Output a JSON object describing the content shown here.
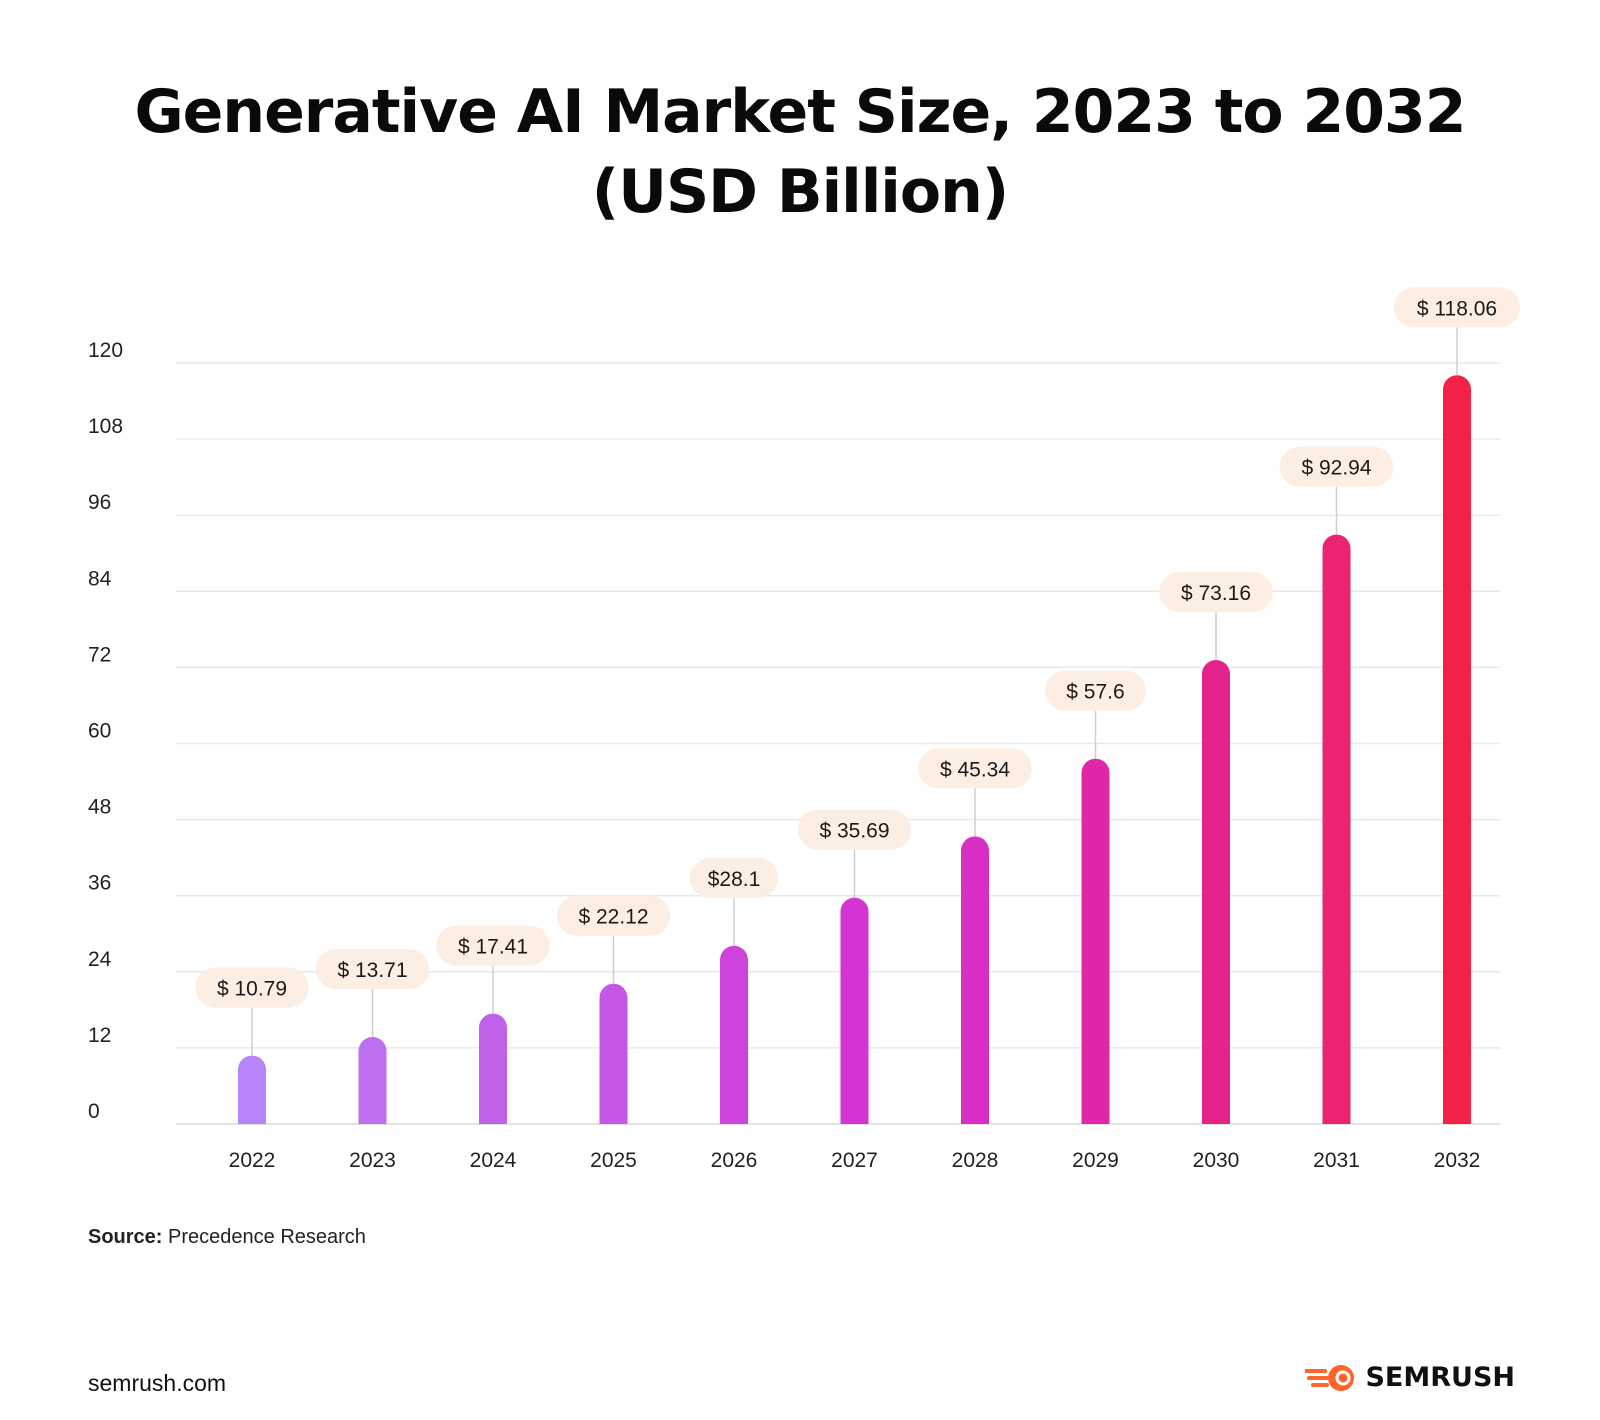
{
  "title": {
    "line1": "Generative AI Market Size, 2023 to 2032",
    "line2": "(USD Billion)"
  },
  "chart_data": {
    "type": "bar",
    "title": "Generative AI Market Size, 2023 to 2032 (USD Billion)",
    "xlabel": "",
    "ylabel": "",
    "ylim": [
      0,
      120
    ],
    "yticks": [
      0,
      12,
      24,
      36,
      48,
      60,
      72,
      84,
      96,
      108,
      120
    ],
    "grid": true,
    "categories": [
      "2022",
      "2023",
      "2024",
      "2025",
      "2026",
      "2027",
      "2028",
      "2029",
      "2030",
      "2031",
      "2032"
    ],
    "values": [
      10.79,
      13.71,
      17.41,
      22.12,
      28.1,
      35.69,
      45.34,
      57.6,
      73.16,
      92.94,
      118.06
    ],
    "data_labels": [
      "$ 10.79",
      "$ 13.71",
      "$ 17.41",
      "$ 22.12",
      "$28.1",
      "$ 35.69",
      "$ 45.34",
      "$ 57.6",
      "$ 73.16",
      "$ 92.94",
      "$ 118.06"
    ],
    "bar_colors": [
      "#b784f9",
      "#bd6ff0",
      "#c161ea",
      "#c556e6",
      "#cd43dc",
      "#d534d4",
      "#da2dc3",
      "#df27a8",
      "#e4238c",
      "#ea2373",
      "#f12245"
    ],
    "label_bg_color": "#fdeee3"
  },
  "footer": {
    "source_label": "Source:",
    "source_value": "Precedence Research",
    "site": "semrush.com",
    "brand": "SEMRUSH",
    "brand_icon": "semrush-logo-icon",
    "brand_color": "#ff642d"
  }
}
